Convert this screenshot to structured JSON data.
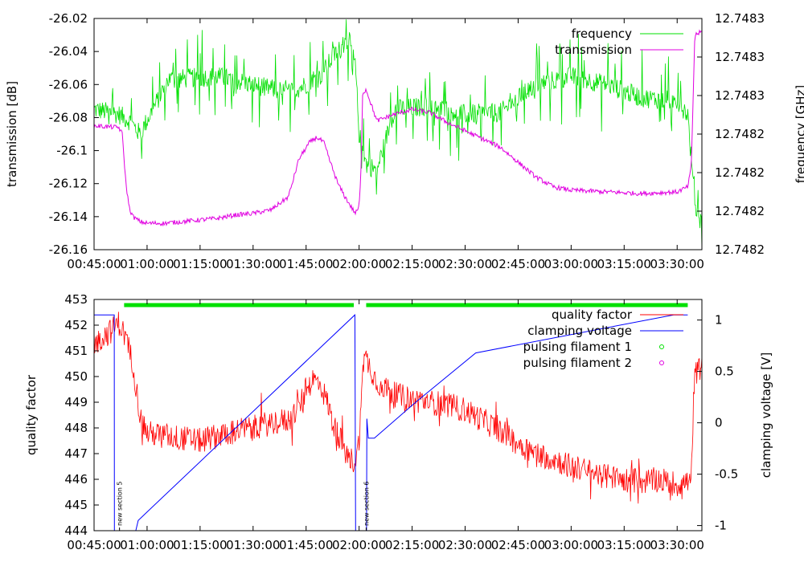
{
  "chart_data": [
    {
      "type": "line",
      "panel": "top",
      "ylabel": "transmission [dB]",
      "y2label": "frequency [GHz]",
      "ylim": [
        -26.16,
        -26.02
      ],
      "y_ticks": [
        "-26.02",
        "-26.04",
        "-26.06",
        "-26.08",
        "-26.1",
        "-26.12",
        "-26.14",
        "-26.16"
      ],
      "y2_ticks": [
        "12.7483",
        "12.7483",
        "12.7483",
        "12.7482",
        "12.7482",
        "12.7482",
        "12.7482"
      ],
      "x_ticks": [
        "00:45:00",
        "01:00:00",
        "01:15:00",
        "01:30:00",
        "01:45:00",
        "02:00:00",
        "02:15:00",
        "02:30:00",
        "02:45:00",
        "03:00:00",
        "03:15:00",
        "03:30:00"
      ],
      "xlim_minutes": [
        45,
        217
      ],
      "legend": [
        "frequency",
        "transmission"
      ],
      "colors": {
        "frequency": "#00e000",
        "transmission": "#e000e0"
      },
      "series": [
        {
          "name": "frequency",
          "axis": "y2",
          "note": "values expressed on left-axis scale",
          "x": [
            45,
            52,
            55,
            58,
            66,
            80,
            90,
            100,
            105,
            107,
            108,
            110,
            113,
            115,
            117,
            119,
            120,
            122,
            125,
            130,
            140,
            150,
            160,
            170,
            180,
            190,
            200,
            210,
            213,
            215,
            217
          ],
          "y": [
            -26.075,
            -26.078,
            -26.082,
            -26.09,
            -26.057,
            -26.055,
            -26.06,
            -26.065,
            -26.06,
            -26.056,
            -26.058,
            -26.052,
            -26.042,
            -26.038,
            -26.032,
            -26.05,
            -26.09,
            -26.108,
            -26.112,
            -26.075,
            -26.073,
            -26.078,
            -26.077,
            -26.06,
            -26.055,
            -26.06,
            -26.068,
            -26.07,
            -26.078,
            -26.133,
            -26.145
          ]
        },
        {
          "name": "transmission",
          "axis": "y",
          "x": [
            45,
            52,
            53,
            54,
            55,
            56,
            58,
            60,
            65,
            70,
            75,
            80,
            85,
            90,
            95,
            100,
            103,
            106,
            108,
            110,
            112,
            114,
            116,
            118,
            119,
            120,
            120.5,
            121,
            122,
            125,
            130,
            135,
            140,
            145,
            150,
            155,
            160,
            165,
            170,
            175,
            180,
            190,
            200,
            210,
            213,
            214,
            215,
            217
          ],
          "y": [
            -26.085,
            -26.086,
            -26.09,
            -26.12,
            -26.135,
            -26.14,
            -26.143,
            -26.144,
            -26.144,
            -26.143,
            -26.142,
            -26.141,
            -26.139,
            -26.138,
            -26.136,
            -26.128,
            -26.105,
            -26.095,
            -26.092,
            -26.095,
            -26.108,
            -26.12,
            -26.128,
            -26.135,
            -26.138,
            -26.134,
            -26.115,
            -26.065,
            -26.063,
            -26.082,
            -26.078,
            -26.075,
            -26.077,
            -26.083,
            -26.088,
            -26.093,
            -26.098,
            -26.107,
            -26.116,
            -26.122,
            -26.124,
            -26.125,
            -26.126,
            -26.125,
            -26.122,
            -26.11,
            -26.03,
            -26.028
          ]
        }
      ]
    },
    {
      "type": "line",
      "panel": "bottom",
      "ylabel": "quality factor",
      "y2label": "clamping voltage [V]",
      "ylim": [
        444,
        453
      ],
      "y2lim": [
        -1.05,
        1.2
      ],
      "y_ticks": [
        "453",
        "452",
        "451",
        "450",
        "449",
        "448",
        "447",
        "446",
        "445",
        "444"
      ],
      "y2_ticks": [
        "1",
        "0.5",
        "0",
        "-0.5",
        "-1"
      ],
      "x_ticks": [
        "00:45:00",
        "01:00:00",
        "01:15:00",
        "01:30:00",
        "01:45:00",
        "02:00:00",
        "02:15:00",
        "02:30:00",
        "02:45:00",
        "03:00:00",
        "03:15:00",
        "03:30:00"
      ],
      "xlim_minutes": [
        45,
        217
      ],
      "legend": [
        "quality factor",
        "clamping voltage",
        "pulsing filament 1",
        "pulsing filament 2"
      ],
      "colors": {
        "quality factor": "#ff0000",
        "clamping voltage": "#0000ff",
        "pulsing filament 1": "#00e000",
        "pulsing filament 2": "#e000e0"
      },
      "annotations": [
        {
          "text": "new section 5",
          "x": 52.2
        },
        {
          "text": "new section 6",
          "x": 122
        }
      ],
      "pulsing_filament_1_ranges": [
        [
          53.5,
          118.5
        ],
        [
          122,
          213
        ]
      ],
      "series": [
        {
          "name": "quality factor",
          "axis": "y",
          "x": [
            45,
            47,
            50,
            52,
            54,
            56,
            58,
            60,
            65,
            70,
            75,
            80,
            85,
            90,
            95,
            100,
            103,
            105,
            107,
            109,
            111,
            113,
            115,
            117,
            119,
            120,
            121,
            122,
            125,
            130,
            135,
            140,
            145,
            150,
            155,
            160,
            165,
            170,
            175,
            180,
            185,
            190,
            195,
            200,
            205,
            210,
            213,
            214,
            215,
            217
          ],
          "y": [
            451.2,
            451.5,
            451.8,
            452.1,
            451.5,
            450.5,
            448.5,
            447.8,
            447.7,
            447.6,
            447.5,
            447.7,
            447.9,
            448.0,
            448.2,
            448.3,
            448.8,
            449.5,
            449.9,
            449.7,
            449.0,
            448.0,
            447.5,
            446.8,
            446.7,
            447.5,
            450.6,
            450.7,
            449.8,
            449.3,
            449.1,
            449.0,
            448.9,
            448.7,
            448.3,
            447.9,
            447.4,
            447.0,
            446.8,
            446.5,
            446.3,
            446.1,
            446.0,
            445.9,
            446.0,
            445.8,
            445.9,
            446.0,
            450.0,
            450.5
          ]
        },
        {
          "name": "clamping voltage",
          "axis": "y2",
          "x": [
            45,
            50.7,
            50.75,
            56.8,
            57.5,
            118.8,
            119,
            122.1,
            122.2,
            122.6,
            124.3,
            136,
            153,
            209,
            213
          ],
          "y": [
            1.05,
            1.05,
            -1.05,
            -1.05,
            -0.95,
            1.05,
            -1.05,
            -1.05,
            0.04,
            -0.15,
            -0.15,
            0.2,
            0.68,
            1.05,
            1.05
          ]
        }
      ]
    }
  ]
}
